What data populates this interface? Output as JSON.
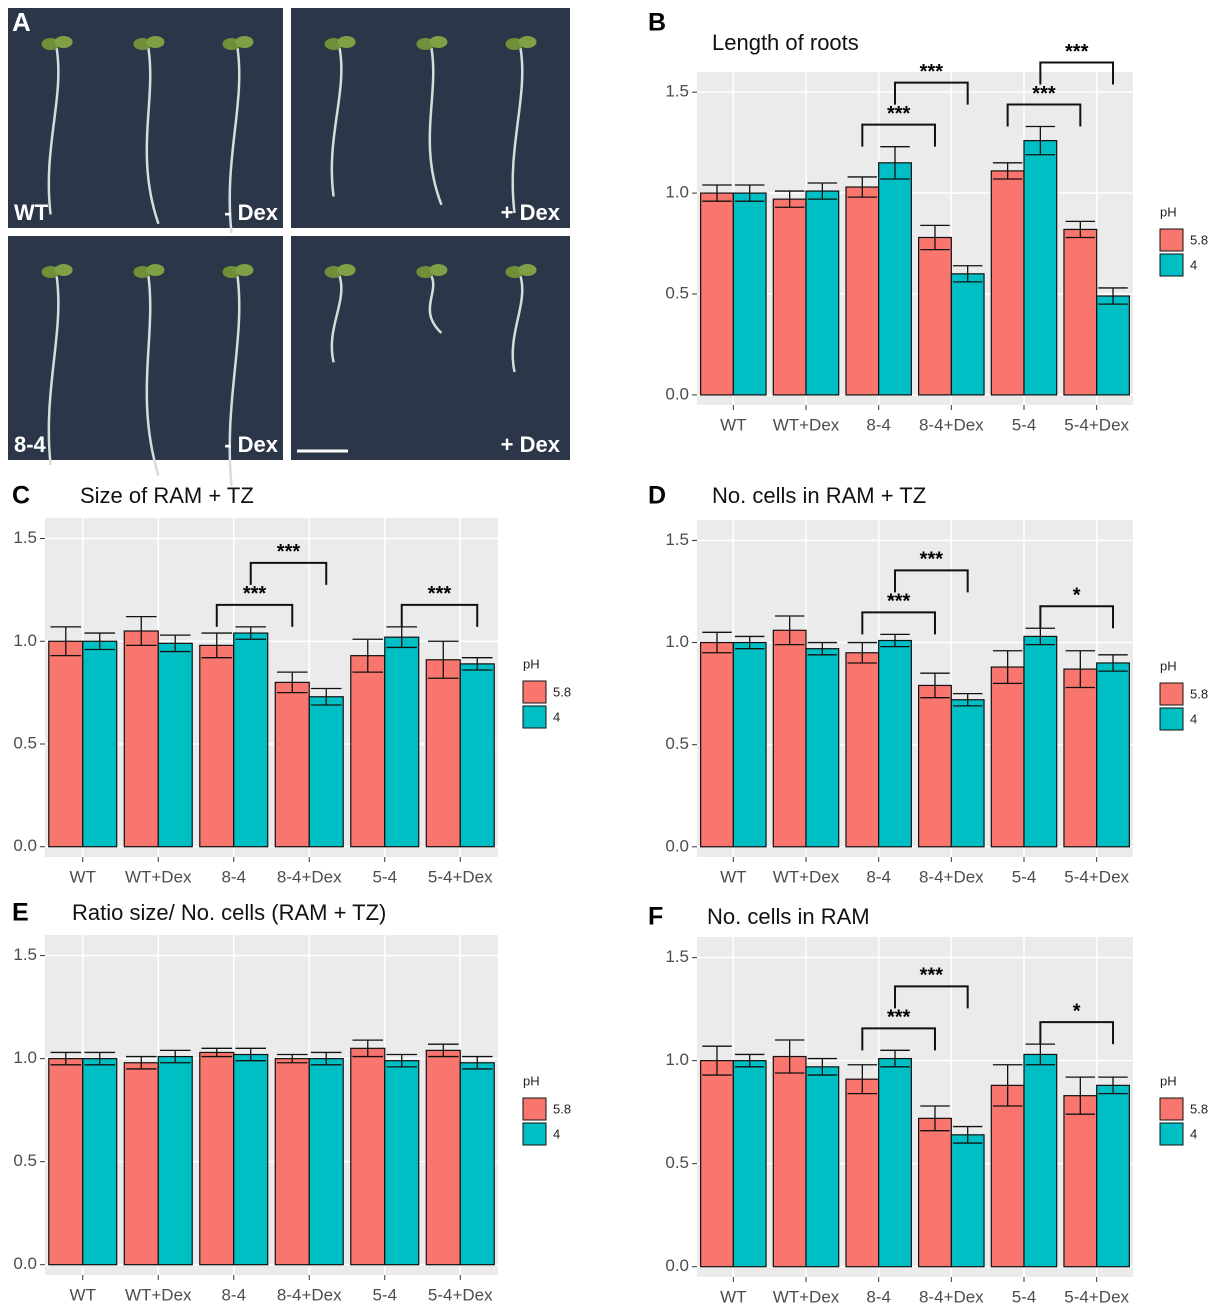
{
  "image_panel": {
    "letter": "A",
    "labels": [
      "WT",
      "- Dex",
      "+ Dex",
      "8-4",
      "- Dex",
      "+ Dex"
    ]
  },
  "chart_data": [
    {
      "type": "bar",
      "panel": "B",
      "title": "Length of roots",
      "categories": [
        "WT",
        "WT+Dex",
        "8-4",
        "8-4+Dex",
        "5-4",
        "5-4+Dex"
      ],
      "series": [
        {
          "name": "5.8",
          "color": "#F8766D",
          "values": [
            1.0,
            0.97,
            1.03,
            0.78,
            1.11,
            0.82
          ],
          "errors": [
            0.04,
            0.04,
            0.05,
            0.06,
            0.04,
            0.04
          ]
        },
        {
          "name": "4",
          "color": "#00BFC4",
          "values": [
            1.0,
            1.01,
            1.15,
            0.6,
            1.26,
            0.49
          ],
          "errors": [
            0.04,
            0.04,
            0.08,
            0.04,
            0.07,
            0.04
          ]
        }
      ],
      "ylim": [
        -0.05,
        1.6
      ],
      "yticks": [
        {
          "value": 0,
          "label": "0.0"
        },
        0.5,
        {
          "value": 1,
          "label": "1.0"
        },
        1.5
      ],
      "grid": true,
      "legend_title": "pH",
      "legend": "right",
      "annotations": [
        {
          "text": "***",
          "series": "5.8",
          "categories": [
            "8-4",
            "8-4+Dex"
          ]
        },
        {
          "text": "***",
          "series": "4",
          "categories": [
            "8-4",
            "8-4+Dex"
          ]
        },
        {
          "text": "***",
          "series": "5.8",
          "categories": [
            "5-4",
            "5-4+Dex"
          ]
        },
        {
          "text": "***",
          "series": "4",
          "categories": [
            "5-4",
            "5-4+Dex"
          ]
        }
      ]
    },
    {
      "type": "bar",
      "panel": "C",
      "title": "Size of RAM + TZ",
      "categories": [
        "WT",
        "WT+Dex",
        "8-4",
        "8-4+Dex",
        "5-4",
        "5-4+Dex"
      ],
      "series": [
        {
          "name": "5.8",
          "color": "#F8766D",
          "values": [
            1.0,
            1.05,
            0.98,
            0.8,
            0.93,
            0.91
          ],
          "errors": [
            0.07,
            0.07,
            0.06,
            0.05,
            0.08,
            0.09
          ]
        },
        {
          "name": "4",
          "color": "#00BFC4",
          "values": [
            1.0,
            0.99,
            1.04,
            0.73,
            1.02,
            0.89
          ],
          "errors": [
            0.04,
            0.04,
            0.03,
            0.04,
            0.05,
            0.03
          ]
        }
      ],
      "ylim": [
        -0.05,
        1.6
      ],
      "yticks": [
        {
          "value": 0,
          "label": "0.0"
        },
        0.5,
        {
          "value": 1,
          "label": "1.0"
        },
        1.5
      ],
      "grid": true,
      "legend_title": "pH",
      "legend": "right",
      "annotations": [
        {
          "text": "***",
          "series": "5.8",
          "categories": [
            "8-4",
            "8-4+Dex"
          ]
        },
        {
          "text": "***",
          "series": "4",
          "categories": [
            "8-4",
            "8-4+Dex"
          ]
        },
        {
          "text": "***",
          "series": "4",
          "categories": [
            "5-4",
            "5-4+Dex"
          ]
        }
      ]
    },
    {
      "type": "bar",
      "panel": "D",
      "title": "No. cells in RAM + TZ",
      "categories": [
        "WT",
        "WT+Dex",
        "8-4",
        "8-4+Dex",
        "5-4",
        "5-4+Dex"
      ],
      "series": [
        {
          "name": "5.8",
          "color": "#F8766D",
          "values": [
            1.0,
            1.06,
            0.95,
            0.79,
            0.88,
            0.87
          ],
          "errors": [
            0.05,
            0.07,
            0.05,
            0.06,
            0.08,
            0.09
          ]
        },
        {
          "name": "4",
          "color": "#00BFC4",
          "values": [
            1.0,
            0.97,
            1.01,
            0.72,
            1.03,
            0.9
          ],
          "errors": [
            0.03,
            0.03,
            0.03,
            0.03,
            0.04,
            0.04
          ]
        }
      ],
      "ylim": [
        -0.05,
        1.6
      ],
      "yticks": [
        {
          "value": 0,
          "label": "0.0"
        },
        0.5,
        {
          "value": 1,
          "label": "1.0"
        },
        1.5
      ],
      "grid": true,
      "legend_title": "pH",
      "legend": "right",
      "annotations": [
        {
          "text": "***",
          "series": "5.8",
          "categories": [
            "8-4",
            "8-4+Dex"
          ]
        },
        {
          "text": "***",
          "series": "4",
          "categories": [
            "8-4",
            "8-4+Dex"
          ]
        },
        {
          "text": "*",
          "series": "4",
          "categories": [
            "5-4",
            "5-4+Dex"
          ]
        }
      ]
    },
    {
      "type": "bar",
      "panel": "E",
      "title": "Ratio size/ No. cells (RAM + TZ)",
      "categories": [
        "WT",
        "WT+Dex",
        "8-4",
        "8-4+Dex",
        "5-4",
        "5-4+Dex"
      ],
      "series": [
        {
          "name": "5.8",
          "color": "#F8766D",
          "values": [
            1.0,
            0.98,
            1.03,
            1.0,
            1.05,
            1.04
          ],
          "errors": [
            0.03,
            0.03,
            0.02,
            0.02,
            0.04,
            0.03
          ]
        },
        {
          "name": "4",
          "color": "#00BFC4",
          "values": [
            1.0,
            1.01,
            1.02,
            1.0,
            0.99,
            0.98
          ],
          "errors": [
            0.03,
            0.03,
            0.03,
            0.03,
            0.03,
            0.03
          ]
        }
      ],
      "ylim": [
        -0.05,
        1.6
      ],
      "yticks": [
        {
          "value": 0,
          "label": "0.0"
        },
        0.5,
        {
          "value": 1,
          "label": "1.0"
        },
        1.5
      ],
      "grid": true,
      "legend_title": "pH",
      "legend": "right",
      "annotations": []
    },
    {
      "type": "bar",
      "panel": "F",
      "title": "No. cells in RAM",
      "categories": [
        "WT",
        "WT+Dex",
        "8-4",
        "8-4+Dex",
        "5-4",
        "5-4+Dex"
      ],
      "series": [
        {
          "name": "5.8",
          "color": "#F8766D",
          "values": [
            1.0,
            1.02,
            0.91,
            0.72,
            0.88,
            0.83
          ],
          "errors": [
            0.07,
            0.08,
            0.07,
            0.06,
            0.1,
            0.09
          ]
        },
        {
          "name": "4",
          "color": "#00BFC4",
          "values": [
            1.0,
            0.97,
            1.01,
            0.64,
            1.03,
            0.88
          ],
          "errors": [
            0.03,
            0.04,
            0.04,
            0.04,
            0.05,
            0.04
          ]
        }
      ],
      "ylim": [
        -0.05,
        1.6
      ],
      "yticks": [
        {
          "value": 0,
          "label": "0.0"
        },
        0.5,
        {
          "value": 1,
          "label": "1.0"
        },
        1.5
      ],
      "grid": true,
      "legend_title": "pH",
      "legend": "right",
      "annotations": [
        {
          "text": "***",
          "series": "5.8",
          "categories": [
            "8-4",
            "8-4+Dex"
          ]
        },
        {
          "text": "***",
          "series": "4",
          "categories": [
            "8-4",
            "8-4+Dex"
          ]
        },
        {
          "text": "*",
          "series": "4",
          "categories": [
            "5-4",
            "5-4+Dex"
          ]
        }
      ]
    }
  ]
}
